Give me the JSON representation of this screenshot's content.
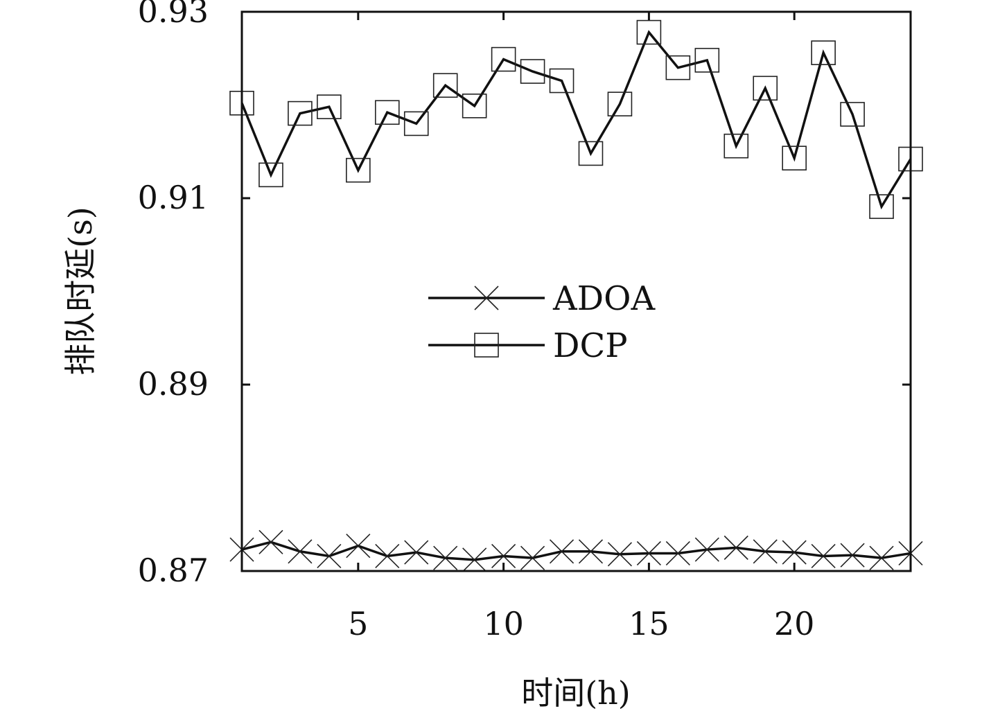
{
  "chart_data": {
    "type": "line",
    "title": "",
    "xlabel": "时间(h)",
    "ylabel": "排队时延(s)",
    "xlim": [
      1,
      24
    ],
    "ylim": [
      0.87,
      0.93
    ],
    "xticks": [
      5,
      10,
      15,
      20
    ],
    "yticks": [
      0.87,
      0.89,
      0.91,
      0.93
    ],
    "ytick_labels": [
      "0.87",
      "0.89",
      "0.91",
      "0.93"
    ],
    "xtick_labels": [
      "5",
      "10",
      "15",
      "20"
    ],
    "grid": false,
    "legend_position": "center",
    "x": [
      1,
      2,
      3,
      4,
      5,
      6,
      7,
      8,
      9,
      10,
      11,
      12,
      13,
      14,
      15,
      16,
      17,
      18,
      19,
      20,
      21,
      22,
      23,
      24
    ],
    "series": [
      {
        "name": "ADOA",
        "marker": "x",
        "values": [
          0.8723,
          0.8731,
          0.8721,
          0.8716,
          0.8727,
          0.8716,
          0.872,
          0.8714,
          0.8712,
          0.8716,
          0.8714,
          0.8721,
          0.8721,
          0.8718,
          0.8719,
          0.8719,
          0.8723,
          0.8725,
          0.8721,
          0.872,
          0.8716,
          0.8717,
          0.8714,
          0.8719
        ]
      },
      {
        "name": "DCP",
        "marker": "square",
        "values": [
          0.9202,
          0.9125,
          0.9191,
          0.9198,
          0.913,
          0.9192,
          0.918,
          0.9221,
          0.9199,
          0.9249,
          0.9236,
          0.9226,
          0.9148,
          0.9201,
          0.9278,
          0.924,
          0.9248,
          0.9156,
          0.9218,
          0.9143,
          0.9256,
          0.919,
          0.9091,
          0.9142
        ]
      }
    ],
    "colors": {
      "line": "#111111",
      "marker": "#222222"
    }
  }
}
